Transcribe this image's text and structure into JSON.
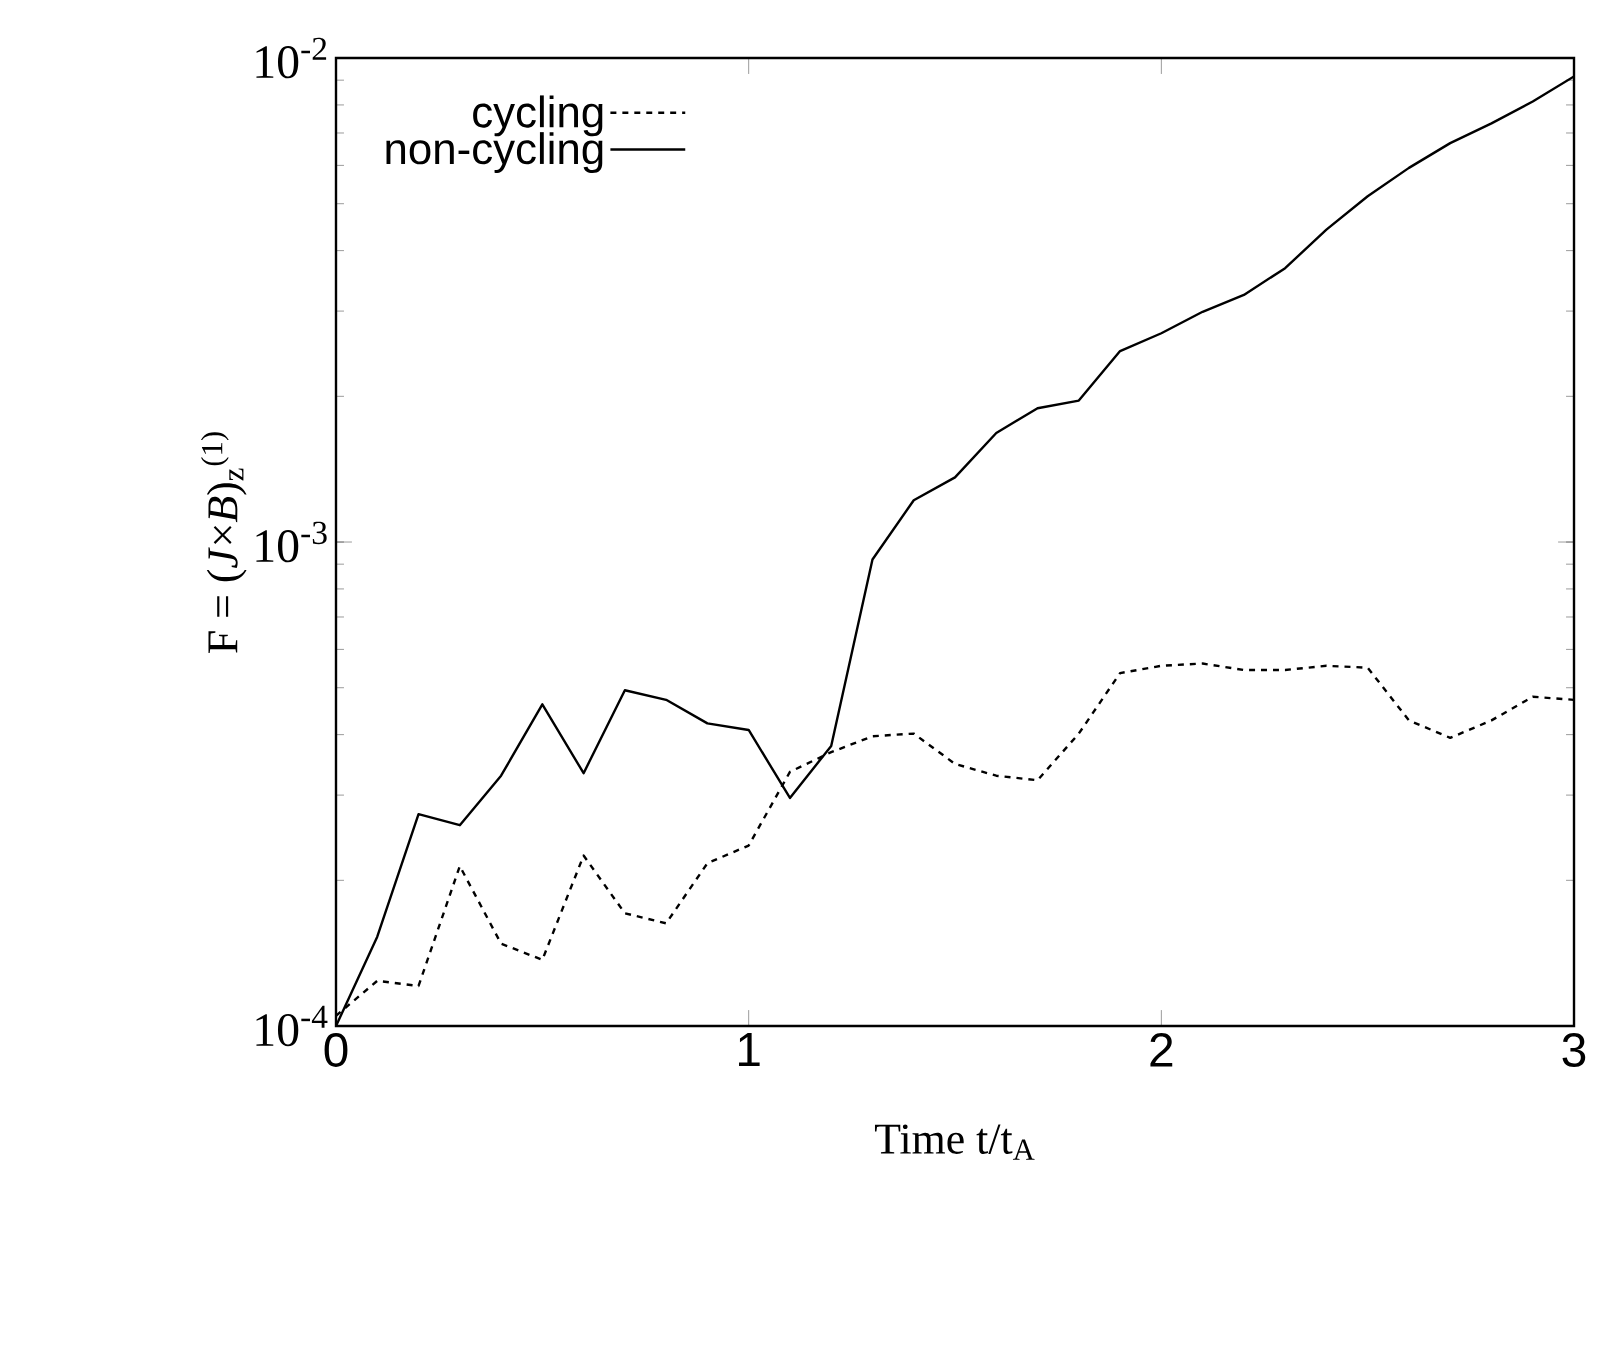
{
  "chart_data": {
    "type": "line",
    "xlabel": "Time t/t$_{A}$",
    "ylabel": "F = (*J*×*B*)$_{z}$$^{(1)}$",
    "x": [
      0,
      0.1,
      0.2,
      0.3,
      0.4,
      0.5,
      0.6,
      0.7,
      0.8,
      0.9,
      1.0,
      1.1,
      1.2,
      1.3,
      1.4,
      1.5,
      1.6,
      1.7,
      1.8,
      1.9,
      2.0,
      2.1,
      2.2,
      2.3,
      2.4,
      2.5,
      2.6,
      2.7,
      2.8,
      2.9,
      3.0
    ],
    "series": [
      {
        "name": "cycling",
        "color": "#000000",
        "line_style": "dashed",
        "values": [
          0.000105,
          0.000124,
          0.000121,
          0.000214,
          0.000148,
          0.000137,
          0.000225,
          0.000171,
          0.000163,
          0.000217,
          0.000236,
          0.000335,
          0.000368,
          0.000397,
          0.000402,
          0.000348,
          0.000329,
          0.000322,
          0.000402,
          0.000536,
          0.000555,
          0.000561,
          0.000544,
          0.000544,
          0.000555,
          0.00055,
          0.000428,
          0.000394,
          0.000428,
          0.000479,
          0.000472
        ]
      },
      {
        "name": "non-cycling",
        "color": "#000000",
        "line_style": "solid",
        "values": [
          0.0001,
          0.000153,
          0.000274,
          0.00026,
          0.000329,
          0.000462,
          0.000333,
          0.000494,
          0.000472,
          0.000422,
          0.000409,
          0.000296,
          0.000379,
          0.00092,
          0.00122,
          0.00136,
          0.00168,
          0.00189,
          0.00196,
          0.00248,
          0.0027,
          0.00299,
          0.00324,
          0.00368,
          0.00442,
          0.00518,
          0.00593,
          0.00667,
          0.00733,
          0.00813,
          0.00916
        ]
      }
    ],
    "xlim": [
      0,
      3
    ],
    "xticks": [
      0,
      1,
      2,
      3
    ],
    "ylim": [
      0.0001,
      0.01
    ],
    "yticks": [
      {
        "value": 0.0001,
        "label": "10$^{-4}$"
      },
      {
        "value": 0.001,
        "label": "10$^{-3}$"
      },
      {
        "value": 0.01,
        "label": "10$^{-2}$"
      }
    ],
    "log": "y",
    "legend": "top left",
    "marker": "none"
  }
}
